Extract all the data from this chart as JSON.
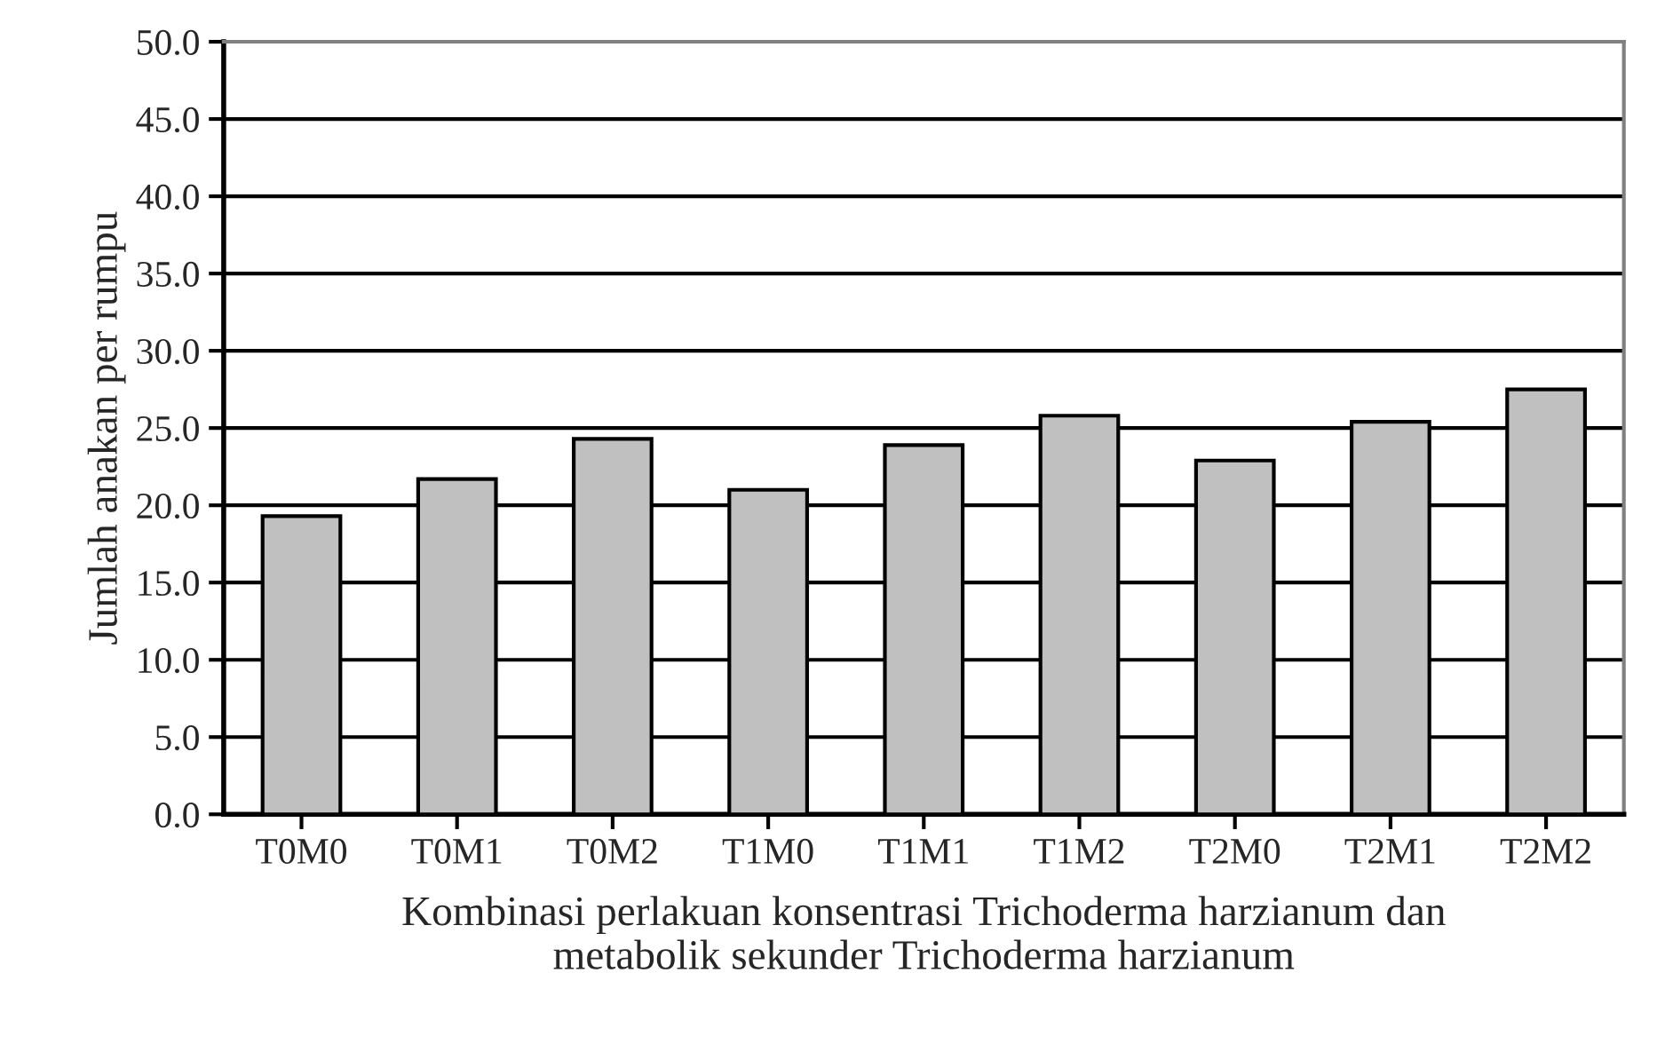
{
  "chart_data": {
    "type": "bar",
    "categories": [
      "T0M0",
      "T0M1",
      "T0M2",
      "T1M0",
      "T1M1",
      "T1M2",
      "T2M0",
      "T2M1",
      "T2M2"
    ],
    "values": [
      19.3,
      21.7,
      24.3,
      21.0,
      23.9,
      25.8,
      22.9,
      25.4,
      27.5
    ],
    "color": "#c0c0c0",
    "xlabel": "Kombinasi perlakuan konsentrasi Trichoderma harzianum dan\nmetabolik sekunder Trichoderma harzianum",
    "ylabel": "Jumlah anakan per rumpu",
    "ylim": [
      0,
      50
    ],
    "yticks": [
      {
        "value": 0,
        "label": "0.0"
      },
      {
        "value": 5,
        "label": "5.0"
      },
      {
        "value": 10,
        "label": "10.0"
      },
      {
        "value": 15,
        "label": "15.0"
      },
      {
        "value": 20,
        "label": "20.0"
      },
      {
        "value": 25,
        "label": "25.0"
      },
      {
        "value": 30,
        "label": "30.0"
      },
      {
        "value": 35,
        "label": "35.0"
      },
      {
        "value": 40,
        "label": "40.0"
      },
      {
        "value": 45,
        "label": "45.0"
      },
      {
        "value": 50,
        "label": "50.0"
      }
    ],
    "grid": "y"
  }
}
